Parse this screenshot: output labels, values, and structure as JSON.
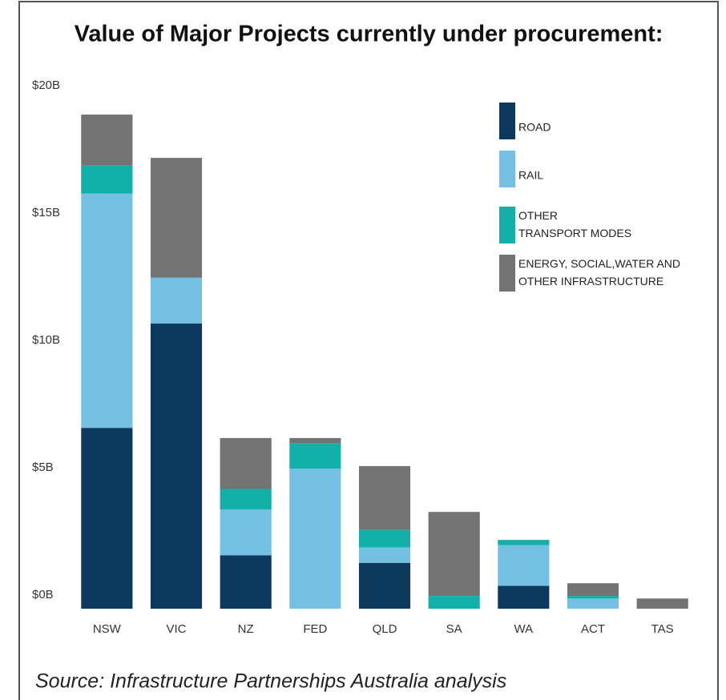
{
  "chart_data": {
    "type": "stacked_bar",
    "title": "Value of Major Projects currently under procurement:",
    "source": "Source: Infrastructure Partnerships Australia analysis",
    "categories": [
      "NSW",
      "VIC",
      "NZ",
      "FED",
      "QLD",
      "SA",
      "WA",
      "ACT",
      "TAS"
    ],
    "series": [
      {
        "name": "ROAD",
        "color": "#0b3a5e",
        "values": [
          7.1,
          11.2,
          2.1,
          0,
          1.8,
          0,
          0.9,
          0,
          0
        ]
      },
      {
        "name": "RAIL",
        "color": "#74c0e3",
        "values": [
          9.2,
          1.8,
          1.8,
          5.5,
          0.6,
          0,
          1.6,
          0.4,
          0
        ]
      },
      {
        "name": "OTHER TRANSPORT MODES",
        "color": "#12b0a8",
        "values": [
          1.1,
          0,
          0.8,
          1.0,
          0.7,
          0.5,
          0.2,
          0.1,
          0
        ]
      },
      {
        "name": "ENERGY, SOCIAL,WATER AND OTHER INFRASTRUCTURE",
        "color": "#737373",
        "values": [
          2.0,
          4.7,
          2.0,
          0.2,
          2.5,
          3.3,
          0,
          0.5,
          0.4
        ]
      }
    ],
    "ylim": [
      0,
      20
    ],
    "yticks": [
      {
        "value": 0,
        "label": "$0B"
      },
      {
        "value": 5,
        "label": "$5B"
      },
      {
        "value": 10,
        "label": "$10B"
      },
      {
        "value": 15,
        "label": "$15B"
      },
      {
        "value": 20,
        "label": "$20B"
      }
    ]
  }
}
